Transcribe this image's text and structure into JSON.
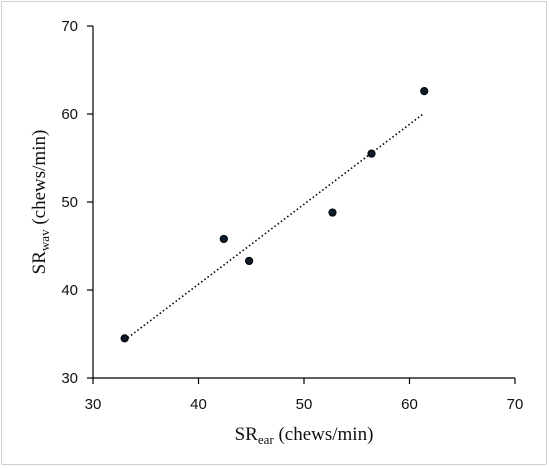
{
  "chart_data": {
    "type": "scatter",
    "title": "",
    "xlabel": {
      "main": "SR",
      "subscript": "ear",
      "unit": " (chews/min)"
    },
    "ylabel": {
      "main": "SR",
      "subscript": "wav",
      "unit": " (chews/min)"
    },
    "xlim": [
      30,
      70
    ],
    "ylim": [
      30,
      70
    ],
    "xticks": [
      "30",
      "40",
      "50",
      "60",
      "70"
    ],
    "yticks": [
      "30",
      "40",
      "50",
      "60",
      "70"
    ],
    "grid": false,
    "legend": "none",
    "points": [
      {
        "x": 33.0,
        "y": 34.5
      },
      {
        "x": 42.4,
        "y": 45.8
      },
      {
        "x": 44.8,
        "y": 43.3
      },
      {
        "x": 52.7,
        "y": 48.8
      },
      {
        "x": 56.4,
        "y": 55.5
      },
      {
        "x": 61.4,
        "y": 62.6
      }
    ],
    "trendline": {
      "style": "dotted",
      "x1": 33.0,
      "y1": 34.3,
      "x2": 61.4,
      "y2": 60.1
    },
    "marker_color": "#0d1b2a",
    "marker_edge_color": "#000000",
    "line_color": "#000000"
  }
}
